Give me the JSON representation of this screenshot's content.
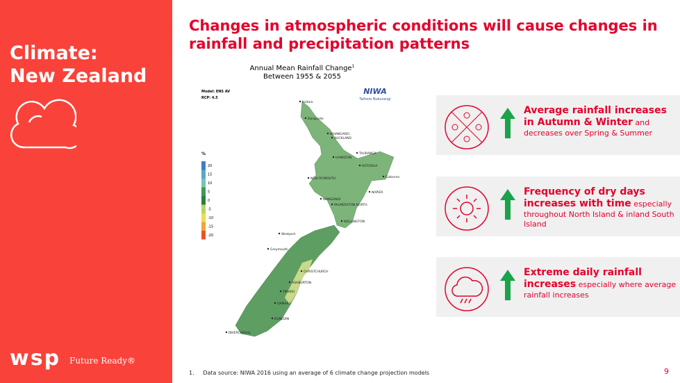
{
  "sidebar": {
    "title": [
      "Climate:",
      "New Zealand"
    ],
    "logo": "wsp",
    "tagline": "Future Ready®"
  },
  "headline": "Changes in atmospheric conditions will cause changes in rainfall and precipitation patterns",
  "map": {
    "title": "Annual Mean Rainfall Change",
    "title_note": "1",
    "subtitle": "Between 1955 & 2055",
    "model": "Model: ENS AV",
    "rcp": "RCP: 4.5",
    "brand": "NIWA",
    "brand_sub": "Taihoro Nukurangi",
    "legend_unit": "%",
    "legend_ticks": [
      20,
      15,
      10,
      5,
      0,
      -5,
      -10,
      -15,
      -20
    ],
    "places": [
      "Kaitaia",
      "Dargaville",
      "WHANGAREI",
      "AUCKLAND",
      "HAMILTON",
      "TAURANGA",
      "ROTORUA",
      "NEW PLYMOUTH",
      "Gisborne",
      "NAPIER",
      "WANGANUI",
      "PALMERSTON NORTH",
      "WELLINGTON",
      "Westport",
      "Greymouth",
      "CHRISTCHURCH",
      "ASHBURTON",
      "TIMARU",
      "OAMARU",
      "DUNEDIN",
      "INVERCARGILL"
    ]
  },
  "cards": [
    {
      "bold": "Average rainfall increases in Autumn & Winter",
      "text": "and decreases over Spring & Summer"
    },
    {
      "bold": "Frequency of dry days increases with time",
      "text": "especially throughout North Island & inland South Island"
    },
    {
      "bold": "Extreme daily rainfall increases",
      "text": "especially where average rainfall increases"
    }
  ],
  "footnote": {
    "number": "1.",
    "text": "Data source: NIWA 2016 using an average of 6 climate change projection models"
  },
  "page_number": "9"
}
